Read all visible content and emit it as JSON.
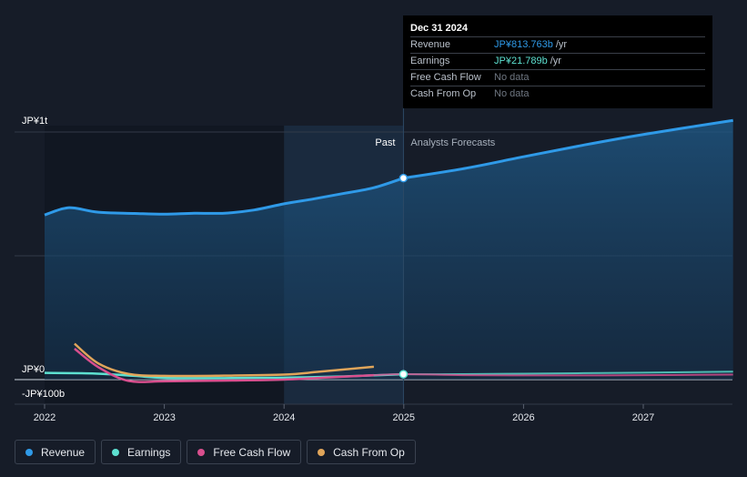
{
  "chart_data": {
    "type": "line",
    "title": "",
    "xlabel": "",
    "ylabel": "",
    "x_ticks": [
      "2022",
      "2023",
      "2024",
      "2025",
      "2026",
      "2027"
    ],
    "y_tick_labels": [
      "JP¥1t",
      "JP¥0",
      "-JP¥100b"
    ],
    "ylim": [
      -100,
      1000
    ],
    "y_unit": "JP¥ billions",
    "divider_date": 2024.997,
    "past_label": "Past",
    "forecast_label": "Analysts Forecasts",
    "series": [
      {
        "name": "Revenue",
        "color": "#2f9ae8",
        "points": [
          [
            2022.0,
            665
          ],
          [
            2022.15,
            690
          ],
          [
            2022.25,
            693
          ],
          [
            2022.45,
            676
          ],
          [
            2022.75,
            671
          ],
          [
            2023.0,
            668
          ],
          [
            2023.25,
            672
          ],
          [
            2023.5,
            672
          ],
          [
            2023.75,
            685
          ],
          [
            2024.0,
            710
          ],
          [
            2024.25,
            730
          ],
          [
            2024.5,
            752
          ],
          [
            2024.75,
            775
          ],
          [
            2024.997,
            813.763
          ]
        ],
        "forecast": [
          [
            2024.997,
            813.763
          ],
          [
            2025.5,
            852
          ],
          [
            2026.0,
            900
          ],
          [
            2026.5,
            947
          ],
          [
            2027.0,
            990
          ],
          [
            2027.75,
            1047
          ]
        ]
      },
      {
        "name": "Earnings",
        "color": "#5de0d0",
        "points": [
          [
            2022.0,
            27
          ],
          [
            2022.4,
            25
          ],
          [
            2022.75,
            15
          ],
          [
            2023.0,
            7
          ],
          [
            2023.5,
            6
          ],
          [
            2024.0,
            8
          ],
          [
            2024.5,
            13
          ],
          [
            2024.997,
            21.789
          ]
        ],
        "forecast": [
          [
            2024.997,
            21.789
          ],
          [
            2025.5,
            22
          ],
          [
            2026.0,
            24
          ],
          [
            2026.5,
            26
          ],
          [
            2027.0,
            28
          ],
          [
            2027.75,
            32
          ]
        ]
      },
      {
        "name": "Free Cash Flow",
        "color": "#d94f8e",
        "points": [
          [
            2022.25,
            125
          ],
          [
            2022.45,
            50
          ],
          [
            2022.7,
            -5
          ],
          [
            2023.0,
            -7
          ],
          [
            2023.5,
            -4
          ],
          [
            2024.0,
            0
          ],
          [
            2024.5,
            12
          ],
          [
            2024.75,
            18
          ]
        ],
        "forecast": [
          [
            2024.75,
            18
          ],
          [
            2025.0,
            22
          ],
          [
            2025.5,
            18
          ],
          [
            2026.0,
            17
          ],
          [
            2026.5,
            17
          ],
          [
            2027.0,
            18
          ],
          [
            2027.75,
            20
          ]
        ]
      },
      {
        "name": "Cash From Op",
        "color": "#e0a55a",
        "points": [
          [
            2022.25,
            145
          ],
          [
            2022.45,
            65
          ],
          [
            2022.7,
            23
          ],
          [
            2023.0,
            15
          ],
          [
            2023.5,
            16
          ],
          [
            2024.0,
            20
          ],
          [
            2024.3,
            32
          ],
          [
            2024.75,
            52
          ]
        ],
        "forecast": []
      }
    ]
  },
  "tooltip": {
    "date": "Dec 31 2024",
    "rows": [
      {
        "name": "Revenue",
        "value": "JP¥813.763b",
        "unit": "/yr",
        "color": "#2f9ae8"
      },
      {
        "name": "Earnings",
        "value": "JP¥21.789b",
        "unit": "/yr",
        "color": "#5de0d0"
      },
      {
        "name": "Free Cash Flow",
        "value": "No data",
        "unit": "",
        "color": "#6f7782"
      },
      {
        "name": "Cash From Op",
        "value": "No data",
        "unit": "",
        "color": "#6f7782"
      }
    ]
  },
  "legend": [
    {
      "label": "Revenue",
      "color": "#2f9ae8"
    },
    {
      "label": "Earnings",
      "color": "#5de0d0"
    },
    {
      "label": "Free Cash Flow",
      "color": "#d94f8e"
    },
    {
      "label": "Cash From Op",
      "color": "#e0a55a"
    }
  ]
}
